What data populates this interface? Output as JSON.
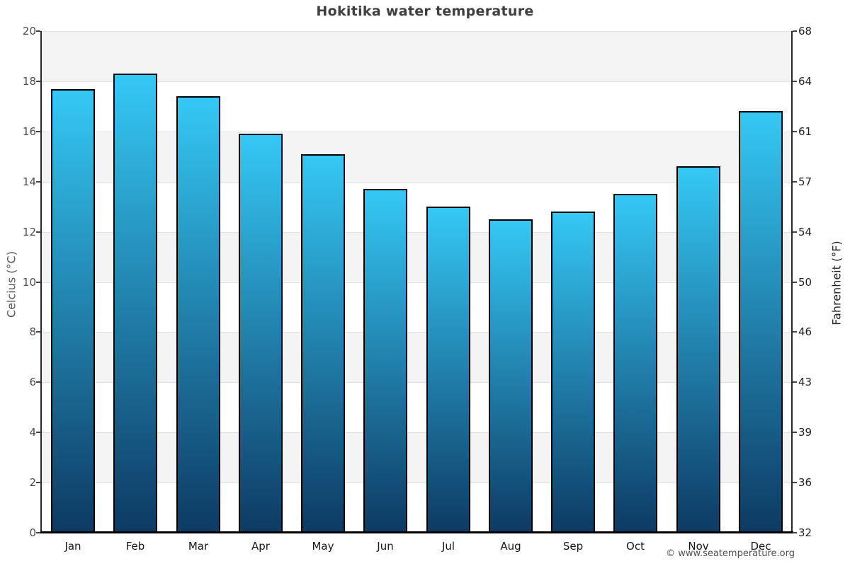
{
  "title": "Hokitika water temperature",
  "footer": {
    "credit": "© www.seatemperature.org"
  },
  "chart_data": {
    "type": "bar",
    "title": "Hokitika water temperature",
    "categories": [
      "Jan",
      "Feb",
      "Mar",
      "Apr",
      "May",
      "Jun",
      "Jul",
      "Aug",
      "Sep",
      "Oct",
      "Nov",
      "Dec"
    ],
    "values": [
      17.7,
      18.3,
      17.4,
      15.9,
      15.1,
      13.7,
      13.0,
      12.5,
      12.8,
      13.5,
      14.6,
      16.8
    ],
    "xlabel": "",
    "ylabel_left": "Celcius (°C)",
    "ylabel_right": "Fahrenheit (°F)",
    "ylim": [
      0,
      20
    ],
    "left_ticks": [
      0,
      2,
      4,
      6,
      8,
      10,
      12,
      14,
      16,
      18,
      20
    ],
    "right_tick_labels": [
      "32",
      "36",
      "39",
      "43",
      "46",
      "50",
      "54",
      "57",
      "61",
      "64",
      "68"
    ],
    "grid": true,
    "legend": false,
    "colors": {
      "bar_gradient_top": "#35c8f5",
      "bar_gradient_bottom": "#0d3a63",
      "bar_border": "#000000",
      "band_gray": "#f4f4f4",
      "band_white": "#ffffff",
      "gridline": "#e0e0e0",
      "axis": "#2a2a2a"
    }
  }
}
